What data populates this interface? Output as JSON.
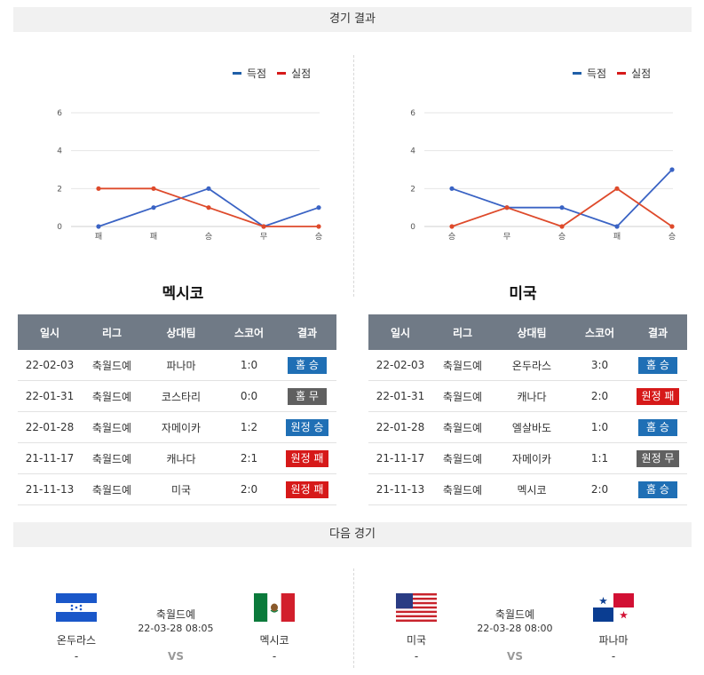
{
  "results_section": {
    "title": "경기 결과"
  },
  "legend": {
    "scored": "득점",
    "conceded": "실점"
  },
  "colors": {
    "scored": "#3a63c4",
    "conceded": "#de4a2b",
    "win": "#1f6fb5",
    "draw": "#606060",
    "loss": "#d61919",
    "header": "#707a86"
  },
  "chart_data": [
    {
      "type": "line",
      "categories": [
        "패",
        "패",
        "승",
        "무",
        "승"
      ],
      "series": [
        {
          "name": "득점",
          "values": [
            0,
            1,
            2,
            0,
            1
          ]
        },
        {
          "name": "실점",
          "values": [
            2,
            2,
            1,
            0,
            0
          ]
        }
      ],
      "yticks": [
        "0",
        "2",
        "4",
        "6"
      ],
      "ylim": [
        0,
        6
      ],
      "grid": true,
      "legend_position": "top-right"
    },
    {
      "type": "line",
      "categories": [
        "승",
        "무",
        "승",
        "패",
        "승"
      ],
      "series": [
        {
          "name": "득점",
          "values": [
            2,
            1,
            1,
            0,
            3
          ]
        },
        {
          "name": "실점",
          "values": [
            0,
            1,
            0,
            2,
            0
          ]
        }
      ],
      "yticks": [
        "0",
        "2",
        "4",
        "6"
      ],
      "ylim": [
        0,
        6
      ],
      "grid": true,
      "legend_position": "top-right"
    }
  ],
  "teams": {
    "left": {
      "name": "멕시코",
      "rows": [
        {
          "date": "22-02-03",
          "league": "축월드예",
          "opponent": "파나마",
          "score": "1:0",
          "result": "홈 승",
          "kind": "win"
        },
        {
          "date": "22-01-31",
          "league": "축월드예",
          "opponent": "코스타리",
          "score": "0:0",
          "result": "홈 무",
          "kind": "draw"
        },
        {
          "date": "22-01-28",
          "league": "축월드예",
          "opponent": "자메이카",
          "score": "1:2",
          "result": "원정 승",
          "kind": "win"
        },
        {
          "date": "21-11-17",
          "league": "축월드예",
          "opponent": "캐나다",
          "score": "2:1",
          "result": "원정 패",
          "kind": "loss"
        },
        {
          "date": "21-11-13",
          "league": "축월드예",
          "opponent": "미국",
          "score": "2:0",
          "result": "원정 패",
          "kind": "loss"
        }
      ]
    },
    "right": {
      "name": "미국",
      "rows": [
        {
          "date": "22-02-03",
          "league": "축월드예",
          "opponent": "온두라스",
          "score": "3:0",
          "result": "홈 승",
          "kind": "win"
        },
        {
          "date": "22-01-31",
          "league": "축월드예",
          "opponent": "캐나다",
          "score": "2:0",
          "result": "원정 패",
          "kind": "loss"
        },
        {
          "date": "22-01-28",
          "league": "축월드예",
          "opponent": "엘살바도",
          "score": "1:0",
          "result": "홈 승",
          "kind": "win"
        },
        {
          "date": "21-11-17",
          "league": "축월드예",
          "opponent": "자메이카",
          "score": "1:1",
          "result": "원정 무",
          "kind": "draw"
        },
        {
          "date": "21-11-13",
          "league": "축월드예",
          "opponent": "멕시코",
          "score": "2:0",
          "result": "홈 승",
          "kind": "win"
        }
      ]
    }
  },
  "table_headers": {
    "date": "일시",
    "league": "리그",
    "opponent": "상대팀",
    "score": "스코어",
    "result": "결과"
  },
  "next_section": {
    "title": "다음 경기"
  },
  "next_matches": [
    {
      "home": {
        "name": "온두라스",
        "extra": "-",
        "flag": "honduras-flag"
      },
      "away": {
        "name": "멕시코",
        "extra": "-",
        "flag": "mexico-flag"
      },
      "league": "축월드예",
      "datetime": "22-03-28 08:05",
      "vs": "VS"
    },
    {
      "home": {
        "name": "미국",
        "extra": "-",
        "flag": "usa-flag"
      },
      "away": {
        "name": "파나마",
        "extra": "-",
        "flag": "panama-flag"
      },
      "league": "축월드예",
      "datetime": "22-03-28 08:00",
      "vs": "VS"
    }
  ]
}
